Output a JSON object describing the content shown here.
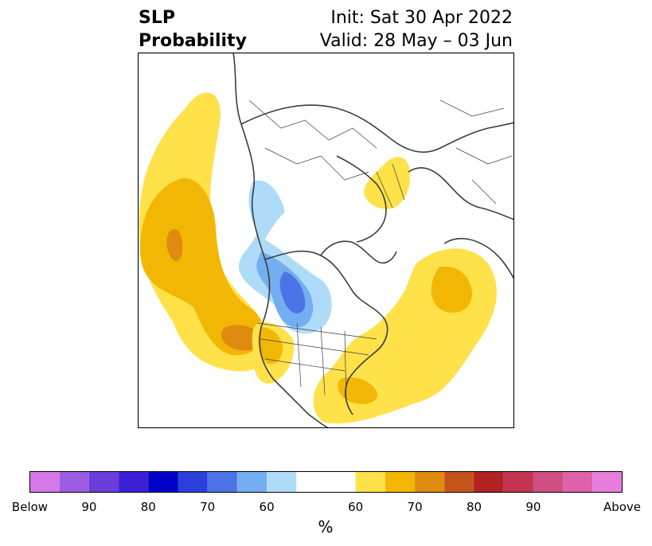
{
  "header": {
    "title_line1": "SLP",
    "title_line2": "Probability",
    "init": "Init: Sat 30 Apr 2022",
    "valid": "Valid: 28 May – 03 Jun"
  },
  "colorbar": {
    "unit": "%",
    "tick_labels": [
      "Below",
      "90",
      "80",
      "70",
      "60",
      "60",
      "70",
      "80",
      "90",
      "Above"
    ],
    "colors": [
      "#d678e8",
      "#9b5ce0",
      "#6b3ddb",
      "#3a1fd6",
      "#0000c8",
      "#2a3fdc",
      "#4c74e6",
      "#74aef0",
      "#aedcf8",
      "#ffffff",
      "#ffe14a",
      "#f2b705",
      "#df8b10",
      "#c4541a",
      "#b22222",
      "#c2344f",
      "#cf4f82",
      "#dc62ab",
      "#e77ddc"
    ]
  },
  "map": {
    "colors": {
      "land_border": "#3c3c3c",
      "light_yellow": "#ffe14a",
      "gold": "#f2b705",
      "orange": "#df8b10",
      "light_blue": "#aedcf8",
      "mid_blue": "#74aef0",
      "blue": "#4c74e6"
    }
  }
}
